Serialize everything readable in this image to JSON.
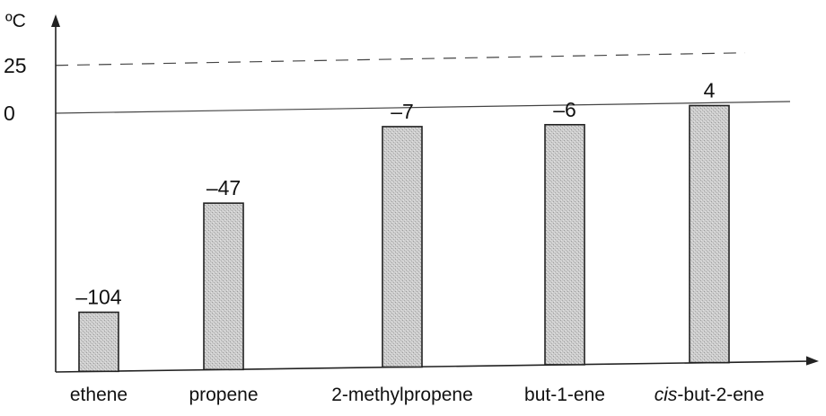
{
  "chart_data": {
    "type": "bar",
    "y_unit": "ºC",
    "categories": [
      "ethene",
      "propene",
      "2-methylpropene",
      "but-1-ene",
      "cis-but-2-ene"
    ],
    "category_label_parts": [
      [
        {
          "text": "ethene",
          "italic": false
        }
      ],
      [
        {
          "text": "propene",
          "italic": false
        }
      ],
      [
        {
          "text": "2-methylpropene",
          "italic": false
        }
      ],
      [
        {
          "text": "but-1-ene",
          "italic": false
        }
      ],
      [
        {
          "text": "cis",
          "italic": true
        },
        {
          "text": "-but-2-ene",
          "italic": false
        }
      ]
    ],
    "values": [
      -104,
      -47,
      -7,
      -6,
      4
    ],
    "value_labels": [
      "–104",
      "–47",
      "–7",
      "–6",
      "4"
    ],
    "y_ticks": [
      {
        "value": 25,
        "label": "25"
      },
      {
        "value": 0,
        "label": "0"
      }
    ],
    "reference_lines": [
      {
        "value": 25,
        "style": "dashed"
      },
      {
        "value": 0,
        "style": "solid"
      }
    ],
    "colors": {
      "bar_fill": "#c9c9c9",
      "axis": "#222222"
    },
    "grid": false,
    "legend": "none"
  }
}
